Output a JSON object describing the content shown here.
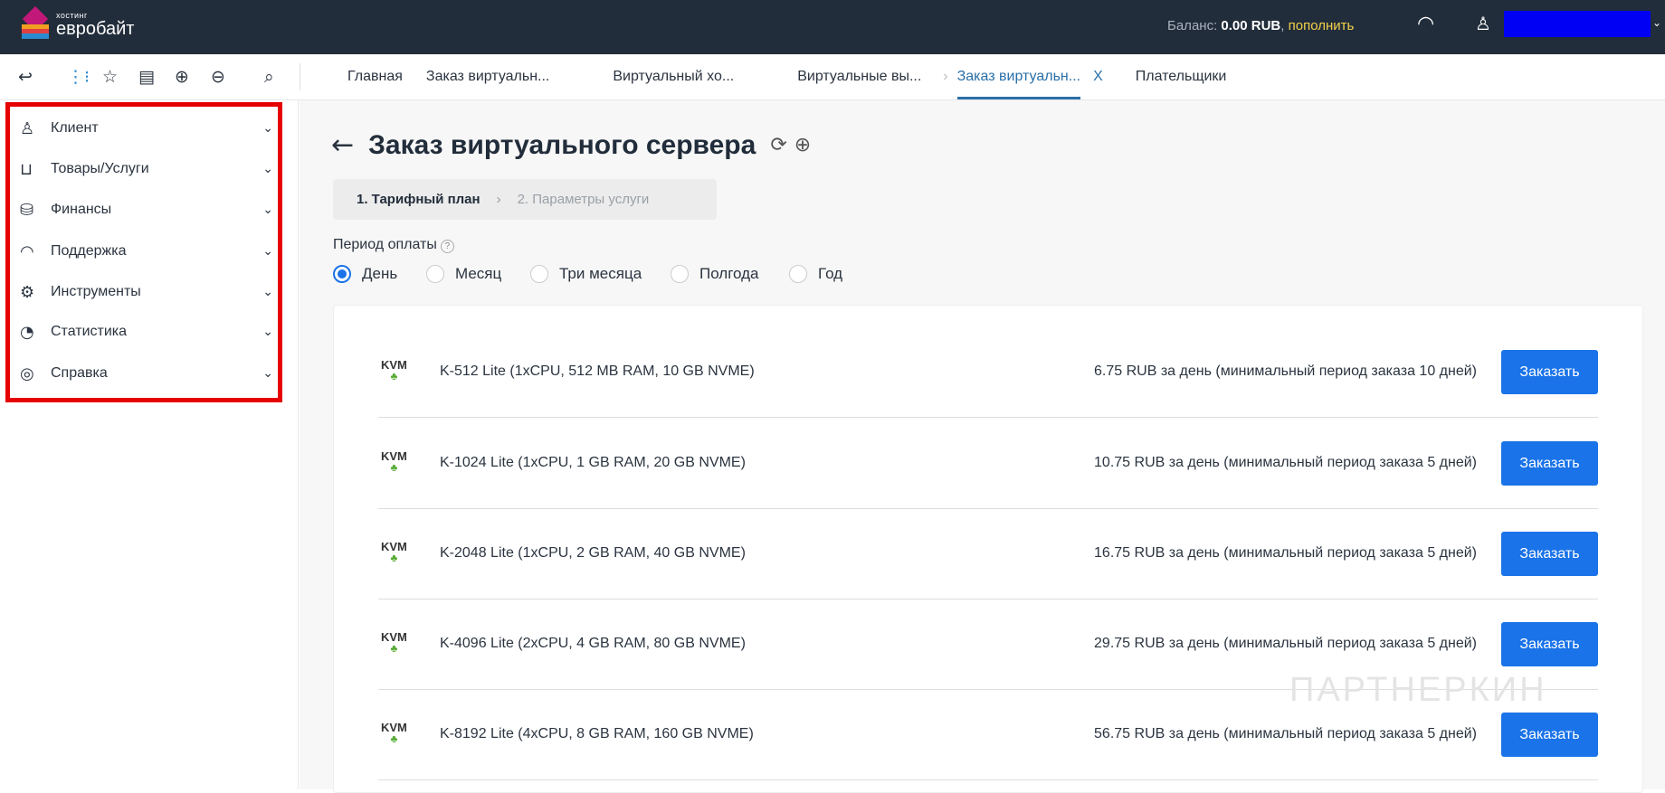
{
  "header": {
    "logo_small": "хостинг",
    "logo_name": "евробайт",
    "balance_label": "Баланс:",
    "balance_value": "0.00 RUB",
    "balance_sep": ",",
    "topup_link": "пополнить"
  },
  "toolbar": {
    "tabs": [
      {
        "label": "Главная"
      },
      {
        "label": "Заказ виртуальн..."
      },
      {
        "label": "Виртуальный хо..."
      },
      {
        "label": "Виртуальные вы..."
      },
      {
        "label": "Заказ виртуальн...",
        "active": true
      },
      {
        "label": "Плательщики"
      }
    ],
    "close_glyph": "X"
  },
  "sidebar": {
    "items": [
      {
        "label": "Клиент",
        "icon": "client-icon"
      },
      {
        "label": "Товары/Услуги",
        "icon": "basket-icon"
      },
      {
        "label": "Финансы",
        "icon": "coins-icon"
      },
      {
        "label": "Поддержка",
        "icon": "headset-icon"
      },
      {
        "label": "Инструменты",
        "icon": "gear-icon"
      },
      {
        "label": "Статистика",
        "icon": "pie-chart-icon"
      },
      {
        "label": "Справка",
        "icon": "lifebuoy-icon"
      }
    ]
  },
  "main": {
    "title": "Заказ виртуального сервера",
    "steps": [
      "1. Тарифный план",
      "2. Параметры услуги"
    ],
    "period_label": "Период оплаты",
    "period_options": [
      "День",
      "Месяц",
      "Три месяца",
      "Полгода",
      "Год"
    ],
    "period_selected": "День",
    "plans": [
      {
        "logo": "KVM",
        "name": "K-512 Lite (1xCPU, 512 MB RAM, 10 GB NVME)",
        "price": "6.75 RUB за день (минимальный период заказа 10 дней)",
        "button": "Заказать"
      },
      {
        "logo": "KVM",
        "name": "K-1024 Lite (1xCPU, 1 GB RAM, 20 GB NVME)",
        "price": "10.75 RUB за день (минимальный период заказа 5 дней)",
        "button": "Заказать"
      },
      {
        "logo": "KVM",
        "name": "K-2048 Lite (1xCPU, 2 GB RAM, 40 GB NVME)",
        "price": "16.75 RUB за день (минимальный период заказа 5 дней)",
        "button": "Заказать"
      },
      {
        "logo": "KVM",
        "name": "K-4096 Lite (2xCPU, 4 GB RAM, 80 GB NVME)",
        "price": "29.75 RUB за день (минимальный период заказа 5 дней)",
        "button": "Заказать"
      },
      {
        "logo": "KVM",
        "name": "K-8192 Lite (4xCPU, 8 GB RAM, 160 GB NVME)",
        "price": "56.75 RUB за день (минимальный период заказа 5 дней)",
        "button": "Заказать"
      }
    ]
  },
  "watermark": "ПАРТНЕРКИН",
  "colors": {
    "header_bg": "#222d3b",
    "accent": "#1a73e8",
    "highlight": "#e60000",
    "topup": "#f2d24b"
  }
}
